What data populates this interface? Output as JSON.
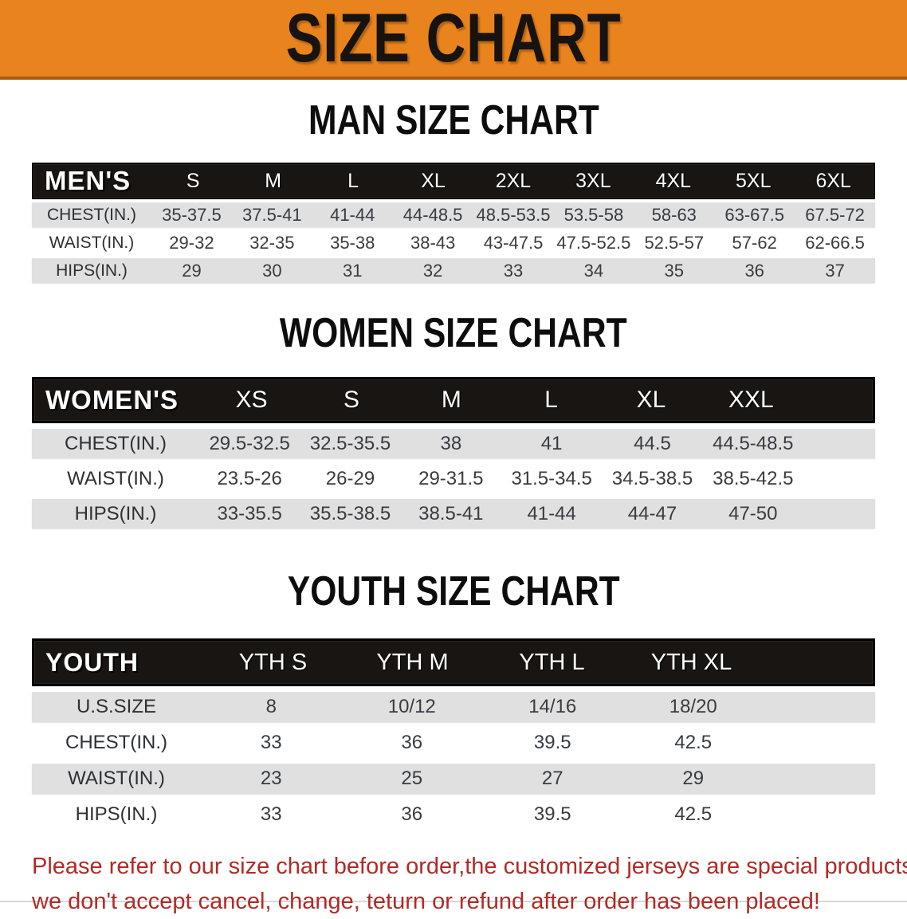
{
  "banner": {
    "title": "SIZE CHART",
    "bg_color": "#E8831D",
    "accent_color": "#A85A10"
  },
  "colors": {
    "header_black": "#191512",
    "stripe_gray": "#e0e0e0",
    "disclaimer_red": "#B12A25"
  },
  "sections": [
    {
      "title": "MAN SIZE CHART",
      "table": {
        "header_label": "MEN'S",
        "columns": [
          "S",
          "M",
          "L",
          "XL",
          "2XL",
          "3XL",
          "4XL",
          "5XL",
          "6XL"
        ],
        "rows": [
          {
            "label": "CHEST(IN.)",
            "values": [
              "35-37.5",
              "37.5-41",
              "41-44",
              "44-48.5",
              "48.5-53.5",
              "53.5-58",
              "58-63",
              "63-67.5",
              "67.5-72"
            ]
          },
          {
            "label": "WAIST(IN.)",
            "values": [
              "29-32",
              "32-35",
              "35-38",
              "38-43",
              "43-47.5",
              "47.5-52.5",
              "52.5-57",
              "57-62",
              "62-66.5"
            ]
          },
          {
            "label": "HIPS(IN.)",
            "values": [
              "29",
              "30",
              "31",
              "32",
              "33",
              "34",
              "35",
              "36",
              "37"
            ]
          }
        ]
      }
    },
    {
      "title": "WOMEN SIZE CHART",
      "table": {
        "header_label": "WOMEN'S",
        "columns": [
          "XS",
          "S",
          "M",
          "L",
          "XL",
          "XXL"
        ],
        "rows": [
          {
            "label": "CHEST(IN.)",
            "values": [
              "29.5-32.5",
              "32.5-35.5",
              "38",
              "41",
              "44.5",
              "44.5-48.5"
            ]
          },
          {
            "label": "WAIST(IN.)",
            "values": [
              "23.5-26",
              "26-29",
              "29-31.5",
              "31.5-34.5",
              "34.5-38.5",
              "38.5-42.5"
            ]
          },
          {
            "label": "HIPS(IN.)",
            "values": [
              "33-35.5",
              "35.5-38.5",
              "38.5-41",
              "41-44",
              "44-47",
              "47-50"
            ]
          }
        ]
      }
    },
    {
      "title": "YOUTH SIZE CHART",
      "table": {
        "header_label": "YOUTH",
        "columns": [
          "YTH S",
          "YTH M",
          "YTH L",
          "YTH XL"
        ],
        "rows": [
          {
            "label": "U.S.SIZE",
            "values": [
              "8",
              "10/12",
              "14/16",
              "18/20"
            ]
          },
          {
            "label": "CHEST(IN.)",
            "values": [
              "33",
              "36",
              "39.5",
              "42.5"
            ]
          },
          {
            "label": "WAIST(IN.)",
            "values": [
              "23",
              "25",
              "27",
              "29"
            ]
          },
          {
            "label": "HIPS(IN.)",
            "values": [
              "33",
              "36",
              "39.5",
              "42.5"
            ]
          }
        ]
      }
    }
  ],
  "disclaimer": {
    "line1": "Please refer to our size chart before order,the customized jerseys are special products,",
    "line2": "we don't accept cancel, change, teturn or refund after order has been placed!"
  }
}
